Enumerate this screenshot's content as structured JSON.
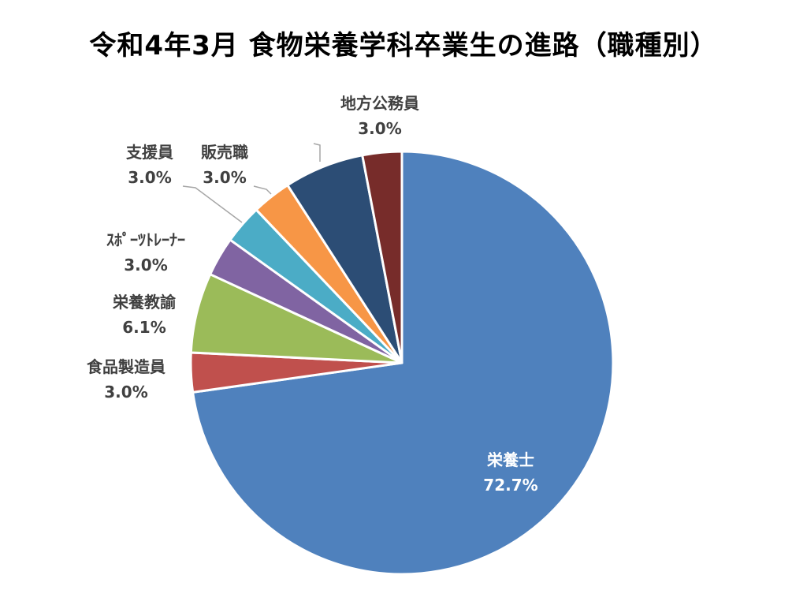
{
  "chart_data": {
    "type": "pie",
    "title": "令和4年3月 食物栄養学科卒業生の進路（職種別）",
    "colors": {
      "slice_border": "#ffffff",
      "label_text": "#404040",
      "inner_label_text": "#ffffff",
      "leader_line": "#a6a6a6"
    },
    "start": "12 o'clock",
    "direction": "clockwise",
    "slices": [
      {
        "name": "栄養士",
        "percent_label": "72.7%",
        "value": 72.7,
        "color": "#4f81bd",
        "label_position": "inside"
      },
      {
        "name": "食品製造員",
        "percent_label": "3.0%",
        "value": 3.0,
        "color": "#c0504d",
        "label_position": "outside"
      },
      {
        "name": "栄養教諭",
        "percent_label": "6.1%",
        "value": 6.1,
        "color": "#9bbb59",
        "label_position": "outside"
      },
      {
        "name": "ｽﾎﾟｰﾂﾄﾚｰﾅｰ",
        "percent_label": "3.0%",
        "value": 3.0,
        "color": "#8064a2",
        "label_position": "outside"
      },
      {
        "name": "支援員",
        "percent_label": "3.0%",
        "value": 3.0,
        "color": "#4bacc6",
        "label_position": "outside"
      },
      {
        "name": "販売職",
        "percent_label": "3.0%",
        "value": 3.0,
        "color": "#f79646",
        "label_position": "outside"
      },
      {
        "name": "",
        "percent_label": "",
        "value": 6.1,
        "color": "#2c4d75",
        "label_position": "none"
      },
      {
        "name": "地方公務員",
        "percent_label": "3.0%",
        "value": 3.0,
        "color": "#772c2a",
        "label_position": "outside"
      }
    ]
  }
}
